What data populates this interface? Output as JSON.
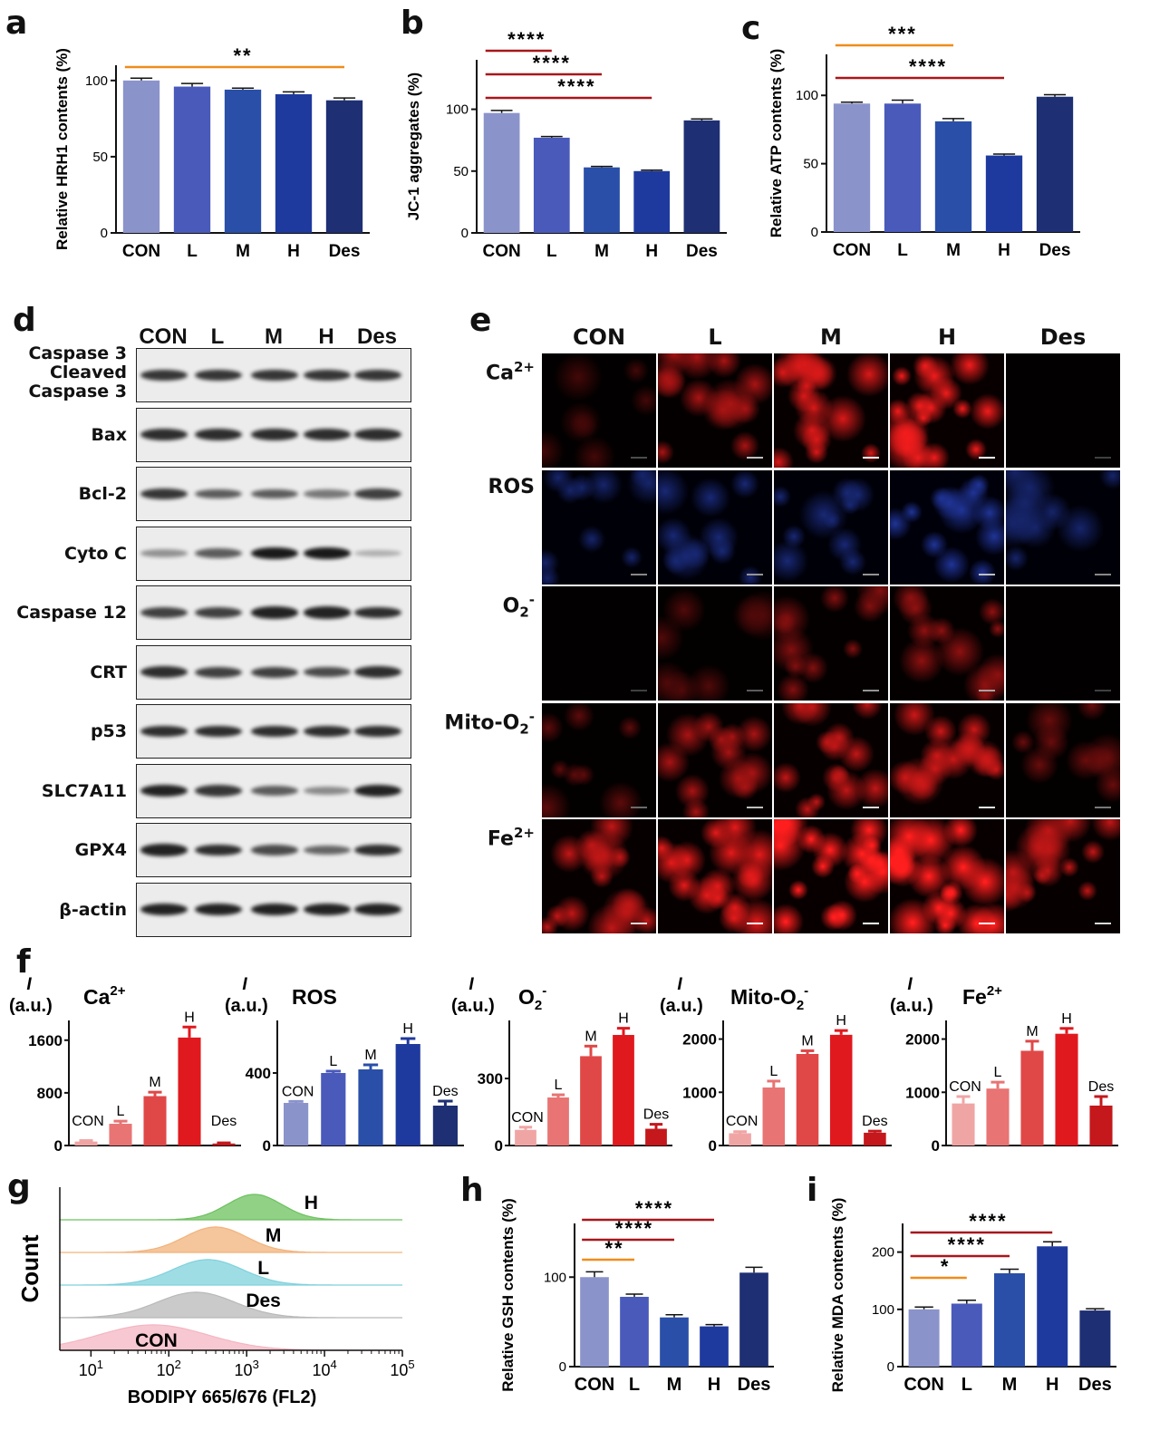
{
  "panel_letters": {
    "a": "a",
    "b": "b",
    "c": "c",
    "d": "d",
    "e": "e",
    "f": "f",
    "g": "g",
    "h": "h",
    "i": "i"
  },
  "groups": [
    "CON",
    "L",
    "M",
    "H",
    "Des"
  ],
  "colors": {
    "blue_grad": [
      "#8b93cb",
      "#4a5aba",
      "#2a4fa8",
      "#1f3a9e",
      "#1e2f73"
    ],
    "red_grad": [
      "#f0a5a5",
      "#e87474",
      "#e04848",
      "#e0191f",
      "#c4181c"
    ],
    "sig_orange": "#f08c1a",
    "sig_red": "#a8161a"
  },
  "chart_data": [
    {
      "id": "a",
      "type": "bar",
      "categories": [
        "CON",
        "L",
        "M",
        "H",
        "Des"
      ],
      "values": [
        100,
        96,
        94,
        91,
        87
      ],
      "errors": [
        1.5,
        2,
        1,
        1.5,
        1.5
      ],
      "ylabel": "Relative HRH1 contents (%)",
      "ylim": [
        0,
        110
      ],
      "yticks": [
        0,
        50,
        100
      ],
      "significance": [
        {
          "from": "CON",
          "to": "Des",
          "label": "**",
          "color": "orange"
        }
      ]
    },
    {
      "id": "b",
      "type": "bar",
      "categories": [
        "CON",
        "L",
        "M",
        "H",
        "Des"
      ],
      "values": [
        97,
        77,
        53,
        50,
        91
      ],
      "errors": [
        2,
        1,
        0.8,
        0.8,
        1.2
      ],
      "ylabel": "JC-1 aggregates (%)",
      "ylim": [
        0,
        140
      ],
      "yticks": [
        0,
        50,
        100
      ],
      "significance": [
        {
          "from": "CON",
          "to": "L",
          "label": "****",
          "color": "red"
        },
        {
          "from": "CON",
          "to": "M",
          "label": "****",
          "color": "red"
        },
        {
          "from": "CON",
          "to": "H",
          "label": "****",
          "color": "red"
        }
      ]
    },
    {
      "id": "c",
      "type": "bar",
      "categories": [
        "CON",
        "L",
        "M",
        "H",
        "Des"
      ],
      "values": [
        94,
        94,
        81,
        56,
        99
      ],
      "errors": [
        1,
        2.5,
        2,
        1,
        1.5
      ],
      "ylabel": "Relative ATP contents (%)",
      "ylim": [
        0,
        130
      ],
      "yticks": [
        0,
        50,
        100
      ],
      "significance": [
        {
          "from": "CON",
          "to": "M",
          "label": "***",
          "color": "orange"
        },
        {
          "from": "CON",
          "to": "H",
          "label": "****",
          "color": "red"
        }
      ]
    },
    {
      "id": "f1",
      "type": "bar",
      "title": "Ca",
      "title_sup": "2+",
      "ylabel_top": "I",
      "ylabel_unit": "(a.u.)",
      "categories": [
        "CON",
        "L",
        "M",
        "H",
        "Des"
      ],
      "values": [
        60,
        330,
        750,
        1640,
        30
      ],
      "errors": [
        15,
        40,
        60,
        160,
        10
      ],
      "ylim": [
        0,
        1900
      ],
      "yticks": [
        0,
        800,
        1600
      ],
      "palette": "red"
    },
    {
      "id": "f2",
      "type": "bar",
      "title": "ROS",
      "ylabel_top": "I",
      "ylabel_unit": "(a.u.)",
      "categories": [
        "CON",
        "L",
        "M",
        "H",
        "Des"
      ],
      "values": [
        235,
        400,
        420,
        560,
        220
      ],
      "errors": [
        8,
        10,
        25,
        30,
        25
      ],
      "ylim": [
        0,
        690
      ],
      "yticks": [
        0,
        400
      ],
      "palette": "blue"
    },
    {
      "id": "f3",
      "type": "bar",
      "title": "O",
      "title_sub": "2",
      "title_sup": "-",
      "ylabel_top": "I",
      "ylabel_unit": "(a.u.)",
      "categories": [
        "CON",
        "L",
        "M",
        "H",
        "Des"
      ],
      "values": [
        70,
        215,
        400,
        495,
        75
      ],
      "errors": [
        12,
        12,
        45,
        30,
        20
      ],
      "ylim": [
        0,
        560
      ],
      "yticks": [
        0,
        300
      ],
      "palette": "red"
    },
    {
      "id": "f4",
      "type": "bar",
      "title": "Mito-O",
      "title_sub": "2",
      "title_sup": "-",
      "ylabel_top": "I",
      "ylabel_unit": "(a.u.)",
      "categories": [
        "CON",
        "L",
        "M",
        "H",
        "Des"
      ],
      "values": [
        230,
        1090,
        1720,
        2080,
        240
      ],
      "errors": [
        30,
        120,
        60,
        80,
        30
      ],
      "ylim": [
        0,
        2350
      ],
      "yticks": [
        0,
        1000,
        2000
      ],
      "palette": "red"
    },
    {
      "id": "f5",
      "type": "bar",
      "title": "Fe",
      "title_sup": "2+",
      "ylabel_top": "I",
      "ylabel_unit": "(a.u.)",
      "categories": [
        "CON",
        "L",
        "M",
        "H",
        "Des"
      ],
      "values": [
        790,
        1070,
        1780,
        2100,
        750
      ],
      "errors": [
        130,
        120,
        180,
        100,
        170
      ],
      "ylim": [
        0,
        2350
      ],
      "yticks": [
        0,
        1000,
        2000
      ],
      "palette": "red"
    },
    {
      "id": "h",
      "type": "bar",
      "categories": [
        "CON",
        "L",
        "M",
        "H",
        "Des"
      ],
      "values": [
        100,
        78,
        55,
        45,
        105
      ],
      "errors": [
        6,
        3,
        3,
        2,
        6
      ],
      "ylabel": "Relative GSH contents (%)",
      "ylim": [
        0,
        160
      ],
      "yticks": [
        0,
        100
      ],
      "significance": [
        {
          "from": "CON",
          "to": "L",
          "label": "**",
          "color": "orange"
        },
        {
          "from": "CON",
          "to": "M",
          "label": "****",
          "color": "red"
        },
        {
          "from": "CON",
          "to": "H",
          "label": "****",
          "color": "red"
        }
      ]
    },
    {
      "id": "i",
      "type": "bar",
      "categories": [
        "CON",
        "L",
        "M",
        "H",
        "Des"
      ],
      "values": [
        100,
        110,
        163,
        210,
        98
      ],
      "errors": [
        4,
        6,
        7,
        8,
        3
      ],
      "ylabel": "Relative MDA contents (%)",
      "ylim": [
        0,
        250
      ],
      "yticks": [
        0,
        100,
        200
      ],
      "significance": [
        {
          "from": "CON",
          "to": "L",
          "label": "*",
          "color": "orange"
        },
        {
          "from": "CON",
          "to": "M",
          "label": "****",
          "color": "red"
        },
        {
          "from": "CON",
          "to": "H",
          "label": "****",
          "color": "red"
        }
      ]
    },
    {
      "id": "g",
      "type": "area",
      "xlabel": "BODIPY 665/676 (FL2)",
      "ylabel": "Count",
      "xscale": "log",
      "xticks": [
        {
          "base": "10",
          "exp": "1"
        },
        {
          "base": "10",
          "exp": "2"
        },
        {
          "base": "10",
          "exp": "3"
        },
        {
          "base": "10",
          "exp": "4"
        },
        {
          "base": "10",
          "exp": "5"
        }
      ],
      "series": [
        {
          "name": "H",
          "peak_log10": 3.1,
          "width": 0.35,
          "color": "#6cc15e"
        },
        {
          "name": "M",
          "peak_log10": 2.6,
          "width": 0.4,
          "color": "#f2b27a"
        },
        {
          "name": "L",
          "peak_log10": 2.5,
          "width": 0.45,
          "color": "#7fd1dc"
        },
        {
          "name": "Des",
          "peak_log10": 2.35,
          "width": 0.5,
          "color": "#b8b8b8"
        },
        {
          "name": "CON",
          "peak_log10": 1.8,
          "width": 0.7,
          "color": "#f4b6c2"
        }
      ]
    }
  ],
  "western_blot": {
    "lanes": [
      "CON",
      "L",
      "M",
      "H",
      "Des"
    ],
    "rows": [
      {
        "label_lines": [
          "Caspase 3",
          "Cleaved",
          "Caspase 3"
        ],
        "intensity": [
          0.8,
          0.8,
          0.8,
          0.8,
          0.8
        ]
      },
      {
        "label_lines": [
          "Bax"
        ],
        "intensity": [
          0.85,
          0.85,
          0.85,
          0.85,
          0.85
        ]
      },
      {
        "label_lines": [
          "Bcl-2"
        ],
        "intensity": [
          0.8,
          0.6,
          0.6,
          0.45,
          0.75
        ]
      },
      {
        "label_lines": [
          "Cyto C"
        ],
        "intensity": [
          0.3,
          0.6,
          0.95,
          0.95,
          0.15
        ]
      },
      {
        "label_lines": [
          "Caspase 12"
        ],
        "intensity": [
          0.75,
          0.75,
          0.9,
          0.9,
          0.85
        ]
      },
      {
        "label_lines": [
          "CRT"
        ],
        "intensity": [
          0.85,
          0.75,
          0.75,
          0.7,
          0.85
        ]
      },
      {
        "label_lines": [
          "p53"
        ],
        "intensity": [
          0.85,
          0.85,
          0.85,
          0.85,
          0.85
        ]
      },
      {
        "label_lines": [
          "SLC7A11"
        ],
        "intensity": [
          0.9,
          0.8,
          0.6,
          0.35,
          0.9
        ]
      },
      {
        "label_lines": [
          "GPX4"
        ],
        "intensity": [
          0.9,
          0.85,
          0.7,
          0.55,
          0.85
        ]
      },
      {
        "label_lines": [
          "β-actin"
        ],
        "intensity": [
          0.9,
          0.9,
          0.9,
          0.9,
          0.9
        ]
      }
    ]
  },
  "micrographs": {
    "columns": [
      "CON",
      "L",
      "M",
      "H",
      "Des"
    ],
    "rows": [
      {
        "label": "Ca",
        "sub": "",
        "sup": "2+",
        "color": "#e01a1a",
        "intensity": [
          0.05,
          0.45,
          0.65,
          0.75,
          0.0
        ]
      },
      {
        "label": "ROS",
        "sub": "",
        "sup": "",
        "color": "#2a45c8",
        "intensity": [
          0.25,
          0.3,
          0.3,
          0.45,
          0.25
        ]
      },
      {
        "label": "O",
        "sub": "2",
        "sup": "-",
        "color": "#e01a1a",
        "intensity": [
          0.0,
          0.1,
          0.3,
          0.35,
          0.0
        ]
      },
      {
        "label": "Mito-O",
        "sub": "2",
        "sup": "-",
        "color": "#e01a1a",
        "intensity": [
          0.15,
          0.45,
          0.55,
          0.6,
          0.2
        ]
      },
      {
        "label": "Fe",
        "sub": "",
        "sup": "2+",
        "color": "#e01a1a",
        "intensity": [
          0.55,
          0.7,
          0.85,
          0.85,
          0.55
        ]
      }
    ]
  }
}
